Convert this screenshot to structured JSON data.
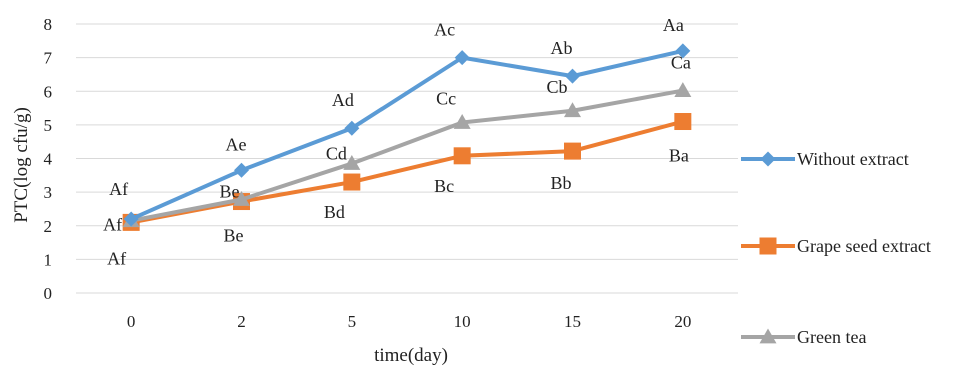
{
  "chart_data": {
    "type": "line",
    "title": "",
    "xlabel": "time(day)",
    "ylabel": "PTC(log cfu/g)",
    "categories": [
      "0",
      "2",
      "5",
      "10",
      "15",
      "20"
    ],
    "ylim": [
      0,
      8
    ],
    "yticks": [
      "0",
      "1",
      "2",
      "3",
      "4",
      "5",
      "6",
      "7",
      "8"
    ],
    "grid": true,
    "legend_position": "right",
    "series": [
      {
        "name": "Without extract",
        "color": "#5B9BD5",
        "marker": "diamond",
        "values": [
          2.2,
          3.65,
          4.9,
          7.0,
          6.45,
          7.2
        ],
        "labels": [
          "Af",
          "Ae",
          "Ad",
          "Ac",
          "Ab",
          "Aa"
        ]
      },
      {
        "name": "Grape seed extract",
        "color": "#ED7D31",
        "marker": "square",
        "values": [
          2.1,
          2.72,
          3.3,
          4.08,
          4.22,
          5.1
        ],
        "labels": [
          "Af",
          "Be",
          "Bd",
          "Bc",
          "Bb",
          "Ba"
        ]
      },
      {
        "name": "Green tea",
        "color": "#A5A5A5",
        "marker": "triangle",
        "values": [
          2.15,
          2.78,
          3.85,
          5.07,
          5.42,
          6.02
        ],
        "labels": [
          "Af",
          "Be",
          "Cd",
          "Cc",
          "Cb",
          "Ca"
        ]
      }
    ]
  }
}
